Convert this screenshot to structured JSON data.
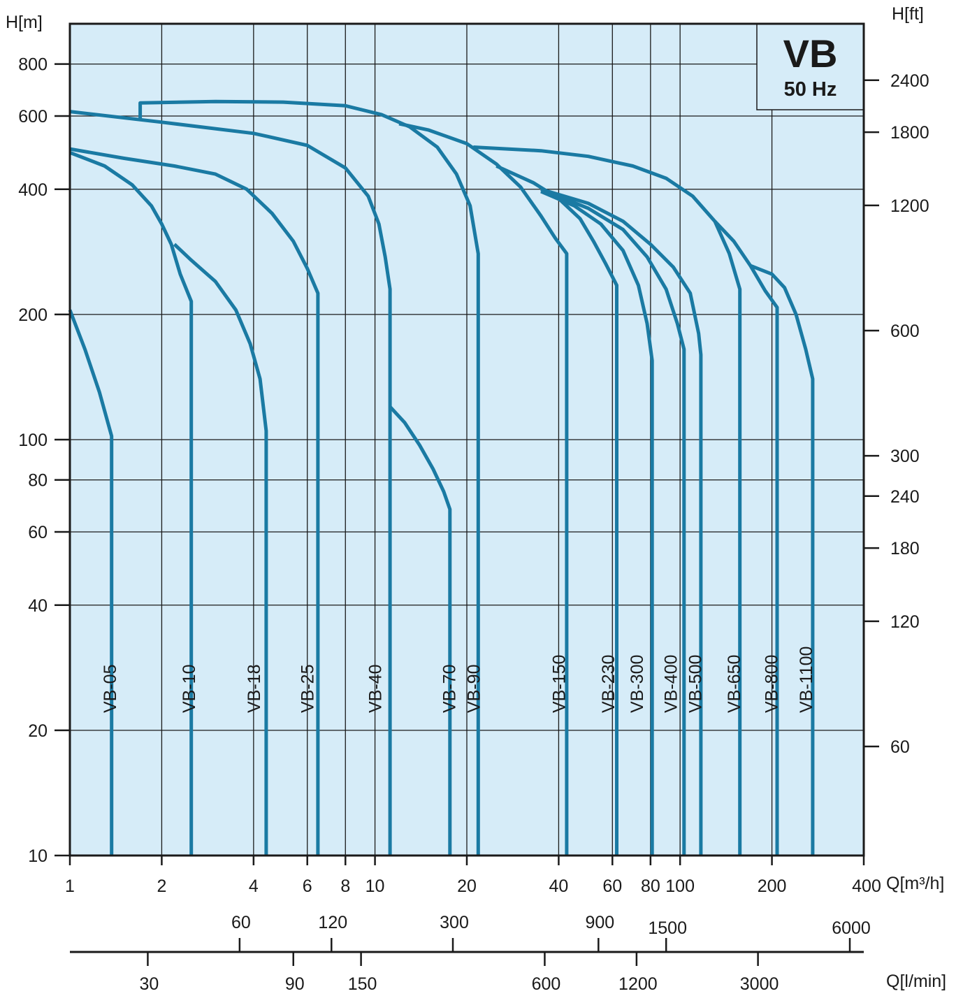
{
  "chart_data": {
    "type": "line",
    "scale": "log-log",
    "grid": true,
    "colors": {
      "plot_bg": "#d6ecf8",
      "curve": "#1a7aa3",
      "ink": "#1a1a1a"
    },
    "badge": {
      "title": "VB",
      "subtitle": "50 Hz"
    },
    "axes": {
      "x_bottom": {
        "label": "Q[m³/h]",
        "range": [
          1,
          400
        ],
        "ticks": [
          1,
          2,
          4,
          6,
          8,
          10,
          20,
          40,
          60,
          80,
          100,
          200,
          400
        ],
        "tick_labels": [
          "1",
          "2",
          "4",
          "6",
          "8",
          "10",
          "20",
          "40",
          "60",
          "80",
          "100",
          "200",
          "400"
        ]
      },
      "y_left": {
        "label": "H[m]",
        "range": [
          10,
          1000
        ],
        "ticks": [
          10,
          20,
          40,
          60,
          80,
          100,
          200,
          400,
          600,
          800
        ],
        "tick_labels": [
          "10",
          "20",
          "40",
          "60",
          "80",
          "100",
          "200",
          "400",
          "600",
          "800"
        ]
      },
      "y_right": {
        "label": "H[ft]",
        "ticks": [
          60,
          120,
          180,
          240,
          300,
          600,
          1200,
          1800,
          2400
        ],
        "tick_labels": [
          "60",
          "120",
          "180",
          "240",
          "300",
          "600",
          "1200",
          "1800",
          "2400"
        ]
      },
      "q_lmin": {
        "label": "Q[l/min]",
        "ticks_above": [
          60,
          120,
          300,
          900,
          1500,
          6000
        ],
        "tick_labels_above": [
          "60",
          "120",
          "300",
          "900",
          "1500",
          "6000"
        ],
        "ticks_below": [
          30,
          90,
          150,
          600,
          1200,
          3000
        ],
        "tick_labels_below": [
          "30",
          "90",
          "150",
          "600",
          "1200",
          "3000"
        ]
      }
    },
    "series": [
      {
        "name": "VB-05",
        "label_x": 1.35,
        "points": [
          [
            1,
            205
          ],
          [
            1.12,
            165
          ],
          [
            1.25,
            130
          ],
          [
            1.37,
            102
          ],
          [
            1.37,
            10
          ]
        ]
      },
      {
        "name": "VB-10",
        "label_x": 2.45,
        "points": [
          [
            1,
            490
          ],
          [
            1.3,
            455
          ],
          [
            1.6,
            410
          ],
          [
            1.85,
            365
          ],
          [
            2.0,
            330
          ],
          [
            2.15,
            295
          ],
          [
            2.3,
            250
          ],
          [
            2.5,
            215
          ],
          [
            2.5,
            10
          ]
        ]
      },
      {
        "name": "VB-18",
        "label_x": 4.0,
        "points": [
          [
            2.2,
            295
          ],
          [
            2.5,
            270
          ],
          [
            3.0,
            240
          ],
          [
            3.5,
            205
          ],
          [
            3.9,
            170
          ],
          [
            4.2,
            140
          ],
          [
            4.4,
            105
          ],
          [
            4.4,
            10
          ]
        ]
      },
      {
        "name": "VB-25",
        "label_x": 6.0,
        "points": [
          [
            1,
            500
          ],
          [
            1.5,
            475
          ],
          [
            2.2,
            455
          ],
          [
            3.0,
            435
          ],
          [
            3.8,
            400
          ],
          [
            4.6,
            350
          ],
          [
            5.4,
            300
          ],
          [
            6.0,
            258
          ],
          [
            6.5,
            225
          ],
          [
            6.5,
            10
          ]
        ]
      },
      {
        "name": "VB-40",
        "label_x": 10.0,
        "points": [
          [
            1,
            615
          ],
          [
            2,
            580
          ],
          [
            4,
            545
          ],
          [
            6,
            510
          ],
          [
            8,
            450
          ],
          [
            9.5,
            385
          ],
          [
            10.3,
            330
          ],
          [
            10.8,
            275
          ],
          [
            11.2,
            230
          ],
          [
            11.2,
            10
          ]
        ]
      },
      {
        "name": "VB-70",
        "label_x": 17.5,
        "points": [
          [
            11.2,
            120
          ],
          [
            12.5,
            110
          ],
          [
            14,
            97
          ],
          [
            15.5,
            85
          ],
          [
            16.8,
            75
          ],
          [
            17.6,
            68
          ],
          [
            17.6,
            10
          ]
        ]
      },
      {
        "name": "VB-90",
        "label_x": 21.0,
        "points": [
          [
            1.7,
            585
          ],
          [
            1.7,
            645
          ],
          [
            3,
            650
          ],
          [
            5,
            648
          ],
          [
            8,
            635
          ],
          [
            10.5,
            605
          ],
          [
            13,
            565
          ],
          [
            16,
            505
          ],
          [
            18.5,
            435
          ],
          [
            20.5,
            365
          ],
          [
            21.8,
            280
          ],
          [
            21.8,
            10
          ]
        ]
      },
      {
        "name": "VB-150",
        "label_x": 40.0,
        "points": [
          [
            12,
            575
          ],
          [
            15,
            555
          ],
          [
            20,
            515
          ],
          [
            25,
            460
          ],
          [
            30,
            405
          ],
          [
            35,
            345
          ],
          [
            39,
            305
          ],
          [
            42.5,
            280
          ],
          [
            42.5,
            10
          ]
        ]
      },
      {
        "name": "VB-230",
        "label_x": 58.0,
        "points": [
          [
            25,
            455
          ],
          [
            33,
            415
          ],
          [
            40,
            380
          ],
          [
            47,
            340
          ],
          [
            52,
            300
          ],
          [
            57,
            265
          ],
          [
            62,
            235
          ],
          [
            62,
            10
          ]
        ]
      },
      {
        "name": "VB-300",
        "label_x": 72.0,
        "points": [
          [
            35,
            395
          ],
          [
            45,
            365
          ],
          [
            55,
            330
          ],
          [
            65,
            285
          ],
          [
            73,
            235
          ],
          [
            78,
            190
          ],
          [
            81,
            155
          ],
          [
            81,
            10
          ]
        ]
      },
      {
        "name": "VB-400",
        "label_x": 93.0,
        "points": [
          [
            35,
            400
          ],
          [
            50,
            360
          ],
          [
            65,
            320
          ],
          [
            78,
            275
          ],
          [
            90,
            230
          ],
          [
            98,
            190
          ],
          [
            103,
            165
          ],
          [
            103,
            10
          ]
        ]
      },
      {
        "name": "VB-500",
        "label_x": 112.0,
        "points": [
          [
            35,
            400
          ],
          [
            50,
            370
          ],
          [
            65,
            335
          ],
          [
            80,
            295
          ],
          [
            95,
            260
          ],
          [
            108,
            225
          ],
          [
            115,
            180
          ],
          [
            117,
            160
          ],
          [
            117,
            10
          ]
        ]
      },
      {
        "name": "VB-650",
        "label_x": 150.0,
        "points": [
          [
            21,
            505
          ],
          [
            35,
            495
          ],
          [
            50,
            480
          ],
          [
            70,
            455
          ],
          [
            90,
            425
          ],
          [
            110,
            385
          ],
          [
            130,
            335
          ],
          [
            145,
            280
          ],
          [
            157,
            230
          ],
          [
            157,
            10
          ]
        ]
      },
      {
        "name": "VB-800",
        "label_x": 199.0,
        "points": [
          [
            130,
            335
          ],
          [
            150,
            300
          ],
          [
            170,
            262
          ],
          [
            190,
            228
          ],
          [
            208,
            208
          ],
          [
            208,
            10
          ]
        ]
      },
      {
        "name": "VB-1100",
        "label_x": 258.0,
        "points": [
          [
            170,
            262
          ],
          [
            200,
            250
          ],
          [
            220,
            232
          ],
          [
            240,
            200
          ],
          [
            258,
            165
          ],
          [
            272,
            140
          ],
          [
            272,
            10
          ]
        ]
      }
    ]
  }
}
